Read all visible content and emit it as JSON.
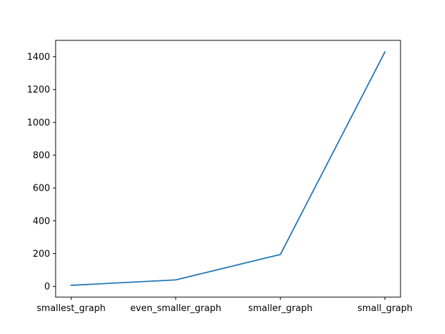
{
  "chart_data": {
    "type": "line",
    "categories": [
      "smallest_graph",
      "even_smaller_graph",
      "smaller_graph",
      "small_graph"
    ],
    "series": [
      {
        "values": [
          7,
          40,
          195,
          1430
        ]
      }
    ],
    "yticks": [
      0,
      200,
      400,
      600,
      800,
      1000,
      1200,
      1400
    ],
    "ylim": [
      -65,
      1500
    ],
    "title": "",
    "xlabel": "",
    "ylabel": "",
    "grid": false,
    "colors": {
      "line": "#1f77b4",
      "axis": "#000000",
      "background": "#ffffff"
    }
  }
}
